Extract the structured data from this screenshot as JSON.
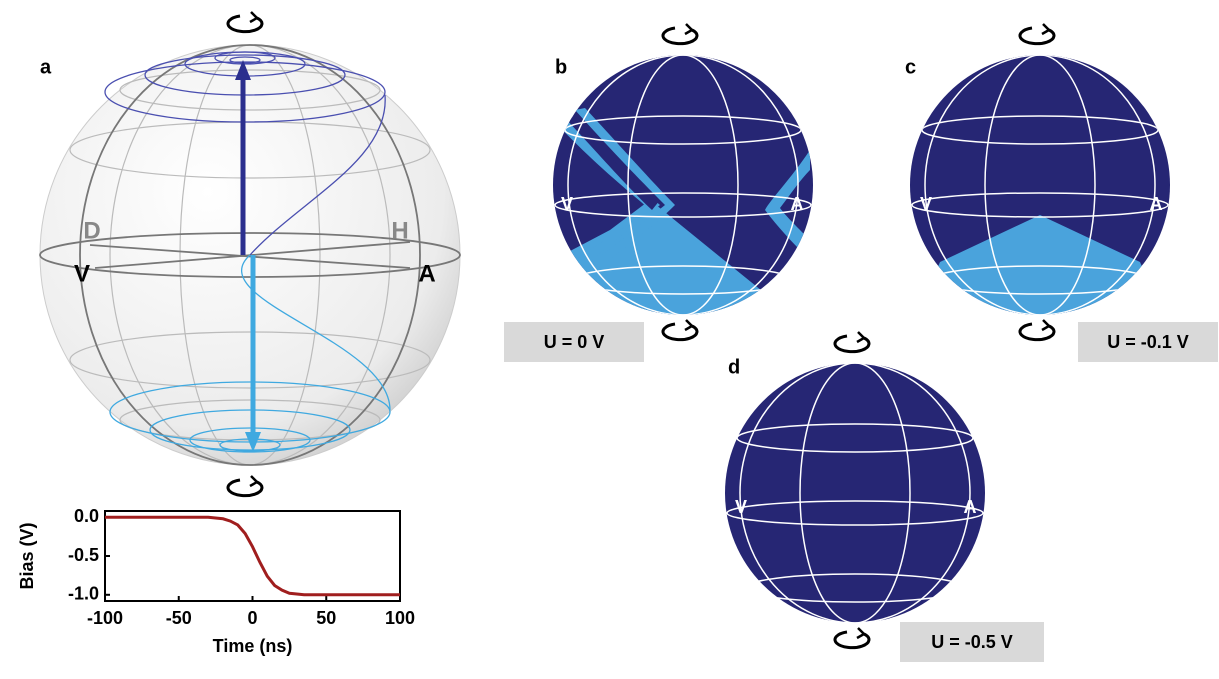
{
  "chart_data": {
    "type": "line",
    "x": [
      -100,
      -95,
      -90,
      -85,
      -80,
      -75,
      -70,
      -65,
      -60,
      -55,
      -50,
      -45,
      -40,
      -35,
      -30,
      -25,
      -20,
      -15,
      -10,
      -5,
      0,
      5,
      10,
      15,
      20,
      25,
      30,
      35,
      40,
      45,
      50,
      55,
      60,
      65,
      70,
      75,
      80,
      85,
      90,
      95,
      100
    ],
    "values": [
      0,
      0,
      0,
      0,
      0,
      0,
      0,
      0,
      0,
      0,
      0,
      0,
      0,
      0,
      0,
      -0.01,
      -0.02,
      -0.05,
      -0.1,
      -0.21,
      -0.38,
      -0.58,
      -0.76,
      -0.88,
      -0.94,
      -0.98,
      -0.99,
      -1,
      -1,
      -1,
      -1,
      -1,
      -1,
      -1,
      -1,
      -1,
      -1,
      -1,
      -1,
      -1,
      -1
    ],
    "color": "#a01e1e",
    "xlabel": "Time (ns)",
    "ylabel": "Bias (V)",
    "xlim": [
      -100,
      100
    ],
    "ylim": [
      -1.08,
      0.08
    ],
    "xticks": [
      -100,
      -50,
      0,
      50,
      100
    ],
    "yticks": [
      {
        "value": 0,
        "label": "0.0"
      },
      {
        "value": -0.5,
        "label": "-0.5"
      },
      {
        "value": -1,
        "label": "-1.0"
      }
    ]
  },
  "figure": {
    "panel_labels": [
      "a",
      "b",
      "c",
      "d"
    ],
    "sphere_a_labels": [
      "D",
      "H",
      "V",
      "A"
    ],
    "sphere_labels": [
      "V",
      "A"
    ],
    "voltage_labels": [
      "U = 0 V",
      "U = -0.1 V",
      "U = -0.5 V"
    ]
  }
}
